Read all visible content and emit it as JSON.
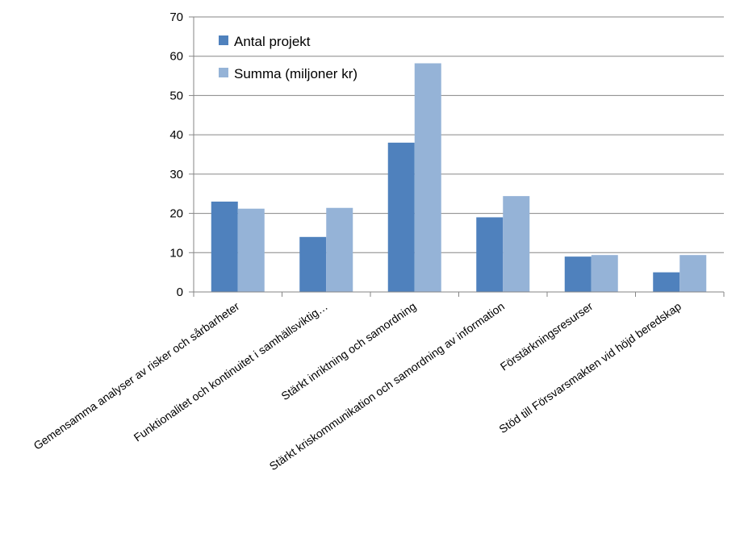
{
  "chart_data": {
    "type": "bar",
    "categories": [
      "Gemensamma analyser av risker och sårbarheter",
      "Funktionalitet och kontinuitet i samhällsviktig…",
      "Stärkt inriktning och samordning",
      "Stärkt kriskommunikation och samordning av information",
      "Förstärkningsresurser",
      "Stöd till Försvarsmakten vid höjd beredskap"
    ],
    "series": [
      {
        "name": "Antal projekt",
        "values": [
          23,
          14,
          38,
          19,
          9,
          5
        ],
        "color": "#4f81bd"
      },
      {
        "name": "Summa (miljoner kr)",
        "values": [
          21.2,
          21.4,
          58.2,
          24.4,
          9.4,
          9.4
        ],
        "color": "#95b3d7"
      }
    ],
    "ylim": [
      0,
      70
    ],
    "yticks": [
      "0",
      "10",
      "20",
      "30",
      "40",
      "50",
      "60",
      "70"
    ],
    "grid": true,
    "legend_position": "top-left"
  }
}
